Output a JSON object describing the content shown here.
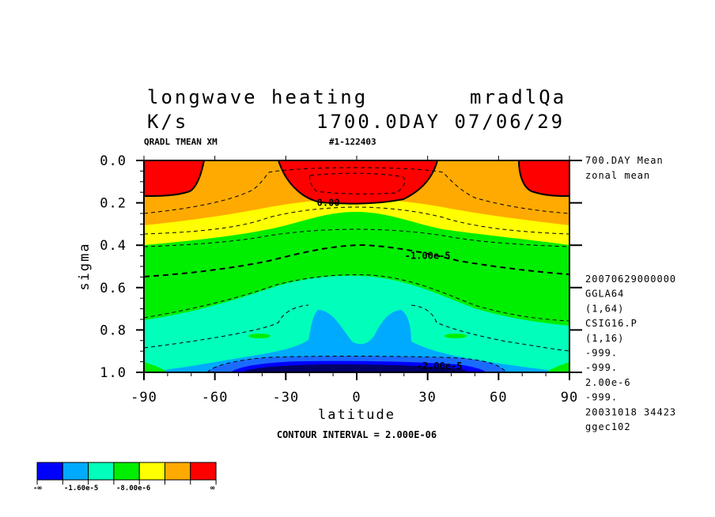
{
  "header": {
    "title_left": "longwave heating",
    "title_right": "mradlQa",
    "units": "K/s",
    "time": "1700.0DAY 07/06/29",
    "var_id": "QRADL TMEAN XM",
    "run_id": "#1-122403"
  },
  "side_info": {
    "mean_label": "700.DAY Mean",
    "zonal_label": "zonal mean",
    "lines": [
      "20070629000000",
      "GGLA64",
      "(1,64)",
      "CSIG16.P",
      "(1,16)",
      "-999.",
      "-999.",
      "2.00e-6",
      "-999.",
      "20031018  34423",
      "ggec102"
    ]
  },
  "footer": {
    "contour_interval": "CONTOUR INTERVAL = 2.000E-06"
  },
  "legend": {
    "colors": [
      "#0000ff",
      "#00aaff",
      "#00ffbb",
      "#00ee00",
      "#ffff00",
      "#ffaa00",
      "#ff0000"
    ],
    "labels": {
      "left": "-∞",
      "mid1": "-1.60e-5",
      "mid2": "-8.00e-6",
      "right": "∞"
    }
  },
  "chart_data": {
    "type": "contour",
    "title": "longwave heating",
    "xlabel": "latitude",
    "ylabel": "sigma",
    "xlim": [
      -90,
      90
    ],
    "ylim": [
      1.0,
      0.0
    ],
    "x_ticks": [
      -90,
      -60,
      -30,
      0,
      30,
      60,
      90
    ],
    "x_tick_labels": [
      "-90",
      "-60",
      "-30",
      "0",
      "30",
      "60",
      "90"
    ],
    "y_ticks": [
      0.0,
      0.2,
      0.4,
      0.6,
      0.8,
      1.0
    ],
    "y_tick_labels": [
      "0.0",
      "0.2",
      "0.4",
      "0.6",
      "0.8",
      "1.0"
    ],
    "contour_interval": 2e-06,
    "contour_labels": [
      {
        "text": "0.00",
        "lat": -12,
        "sigma": 0.2
      },
      {
        "text": "-1.00e-5",
        "lat": 30,
        "sigma": 0.45
      },
      {
        "text": "-2.00e-5",
        "lat": 35,
        "sigma": 0.97
      }
    ],
    "levels": [
      {
        "color": "#ff0000",
        "range": "> 0"
      },
      {
        "color": "#ffaa00",
        "range": "-8.00e-6 to 0"
      },
      {
        "color": "#ffff00",
        "range": "around -8.00e-6"
      },
      {
        "color": "#00ee00",
        "range": "down to -1.60e-5"
      },
      {
        "color": "#00ffbb",
        "range": "around -1.60e-5"
      },
      {
        "color": "#00aaff",
        "range": "below -1.60e-5"
      },
      {
        "color": "#0000ff",
        "range": "lowest"
      }
    ],
    "legend_position": "bottom-left"
  }
}
